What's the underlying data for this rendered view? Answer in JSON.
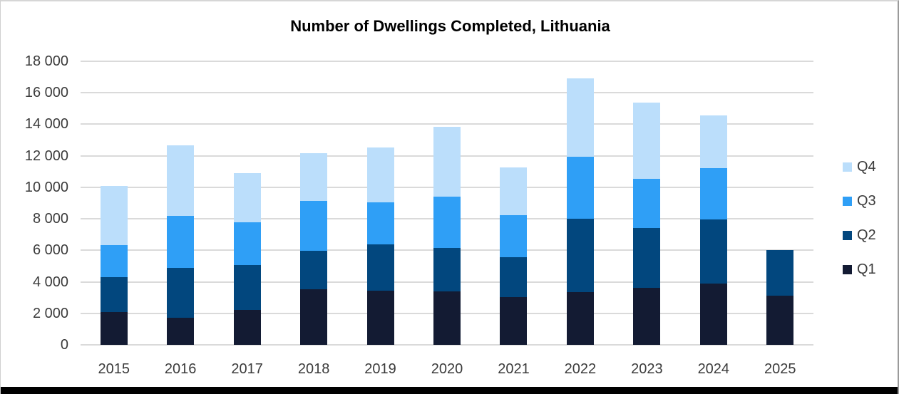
{
  "chart_data": {
    "type": "bar",
    "stacked": true,
    "title": "Number of Dwellings Completed, Lithuania",
    "xlabel": "",
    "ylabel": "",
    "categories": [
      "2015",
      "2016",
      "2017",
      "2018",
      "2019",
      "2020",
      "2021",
      "2022",
      "2023",
      "2024",
      "2025"
    ],
    "series": [
      {
        "name": "Q1",
        "color": "#131B33",
        "values": [
          2100,
          1700,
          2200,
          3550,
          3450,
          3400,
          3050,
          3350,
          3600,
          3900,
          3100
        ]
      },
      {
        "name": "Q2",
        "color": "#02477E",
        "values": [
          2200,
          3200,
          2850,
          2400,
          2950,
          2750,
          2500,
          4650,
          3800,
          4050,
          2900
        ]
      },
      {
        "name": "Q3",
        "color": "#2F9FF6",
        "values": [
          2050,
          3300,
          2750,
          3200,
          2650,
          3250,
          2700,
          3950,
          3150,
          3250,
          0
        ]
      },
      {
        "name": "Q4",
        "color": "#BBDEFB",
        "values": [
          3750,
          4450,
          3100,
          3000,
          3500,
          4450,
          3000,
          4950,
          4850,
          3350,
          0
        ]
      }
    ],
    "totals": [
      10100,
      12650,
      10900,
      12150,
      12550,
      13850,
      11250,
      16900,
      15400,
      14550,
      6000
    ],
    "ylim": [
      0,
      18000
    ],
    "yticks": [
      {
        "value": 0,
        "label": "0"
      },
      {
        "value": 2000,
        "label": "2 000"
      },
      {
        "value": 4000,
        "label": "4 000"
      },
      {
        "value": 6000,
        "label": "6 000"
      },
      {
        "value": 8000,
        "label": "8 000"
      },
      {
        "value": 10000,
        "label": "10 000"
      },
      {
        "value": 12000,
        "label": "12 000"
      },
      {
        "value": 14000,
        "label": "14 000"
      },
      {
        "value": 16000,
        "label": "16 000"
      },
      {
        "value": 18000,
        "label": "18 000"
      }
    ],
    "grid": true,
    "legend": [
      "Q4",
      "Q3",
      "Q2",
      "Q1"
    ],
    "legend_position": "right",
    "gridline_color": "#DADADA"
  }
}
